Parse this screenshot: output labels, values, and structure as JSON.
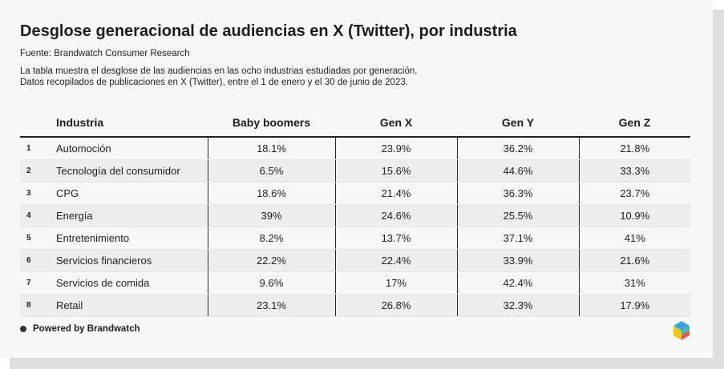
{
  "title": "Desglose generacional de audiencias en X (Twitter), por industria",
  "source": "Fuente: Brandwatch Consumer Research",
  "description_lines": [
    "La tabla muestra el desglose de las audiencias en las ocho industrias estudiadas por generación.",
    "Datos recopilados de publicaciones en X (Twitter), entre el 1 de enero y el 30 de junio de 2023."
  ],
  "footer": "Powered by Brandwatch",
  "colors": {
    "logo_top": "#3ea1de",
    "logo_left": "#f3c41a",
    "logo_right": "#ef5350",
    "logo_mid": "#3fbfb0"
  },
  "chart_data": {
    "type": "table",
    "columns": [
      "Industria",
      "Baby boomers",
      "Gen X",
      "Gen Y",
      "Gen Z"
    ],
    "rows": [
      {
        "index": "1",
        "industry": "Automoción",
        "values": [
          "18.1%",
          "23.9%",
          "36.2%",
          "21.8%"
        ]
      },
      {
        "index": "2",
        "industry": "Tecnología del consumidor",
        "values": [
          "6.5%",
          "15.6%",
          "44.6%",
          "33.3%"
        ]
      },
      {
        "index": "3",
        "industry": "CPG",
        "values": [
          "18.6%",
          "21.4%",
          "36.3%",
          "23.7%"
        ]
      },
      {
        "index": "4",
        "industry": "Energía",
        "values": [
          "39%",
          "24.6%",
          "25.5%",
          "10.9%"
        ]
      },
      {
        "index": "5",
        "industry": "Entretenimiento",
        "values": [
          "8.2%",
          "13.7%",
          "37.1%",
          "41%"
        ]
      },
      {
        "index": "6",
        "industry": "Servicios financieros",
        "values": [
          "22.2%",
          "22.4%",
          "33.9%",
          "21.6%"
        ]
      },
      {
        "index": "7",
        "industry": "Servicios de comida",
        "values": [
          "9.6%",
          "17%",
          "42.4%",
          "31%"
        ]
      },
      {
        "index": "8",
        "industry": "Retail",
        "values": [
          "23.1%",
          "26.8%",
          "32.3%",
          "17.9%"
        ]
      }
    ]
  }
}
